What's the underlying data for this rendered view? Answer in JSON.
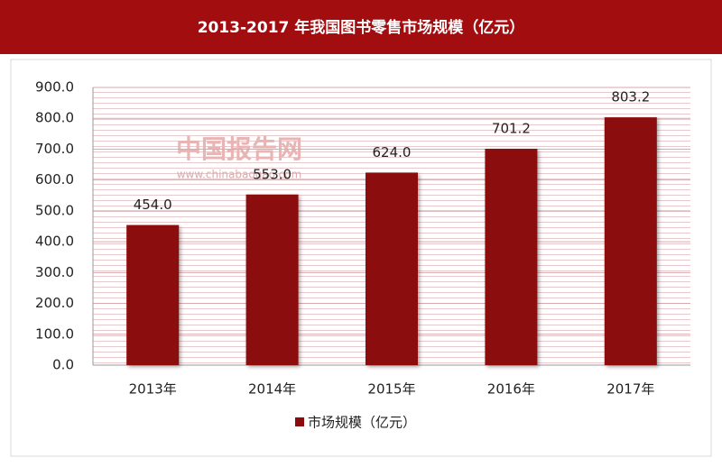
{
  "chart_data": {
    "type": "bar",
    "title": "2013-2017 年我国图书零售市场规模（亿元）",
    "watermark": [
      "中国报告网",
      "www.chinabaogao.com"
    ],
    "categories": [
      "2013年",
      "2014年",
      "2015年",
      "2016年",
      "2017年"
    ],
    "series": [
      {
        "name": "市场规模（亿元）",
        "color": "#8b0a0a",
        "values": [
          454,
          553,
          624,
          701.2,
          803.2
        ],
        "value_labels": [
          "454.0",
          "553.0",
          "624.0",
          "701.2",
          "803.2"
        ]
      }
    ],
    "ylim": [
      0,
      900
    ],
    "yticks": [
      {
        "value": 0,
        "label": "0.0"
      },
      {
        "value": 100,
        "label": "100.0"
      },
      {
        "value": 200,
        "label": "200.0"
      },
      {
        "value": 300,
        "label": "300.0"
      },
      {
        "value": 400,
        "label": "400.0"
      },
      {
        "value": 500,
        "label": "500.0"
      },
      {
        "value": 600,
        "label": "600.0"
      },
      {
        "value": 700,
        "label": "700.0"
      },
      {
        "value": 800,
        "label": "800.0"
      },
      {
        "value": 900,
        "label": "900.0"
      }
    ],
    "grid": true,
    "legend": "bottom"
  }
}
